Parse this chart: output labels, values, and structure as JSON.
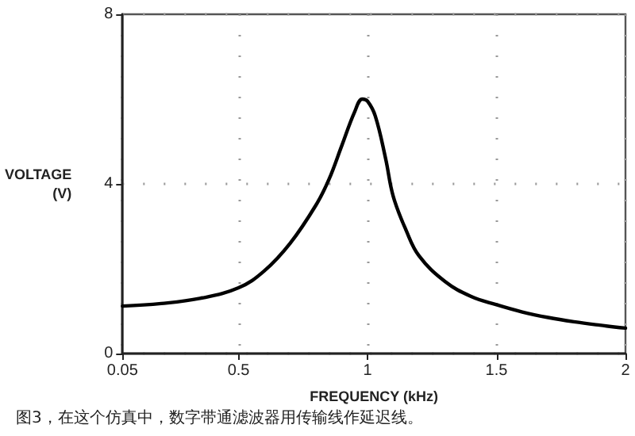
{
  "chart_data": {
    "type": "line",
    "xlabel": "FREQUENCY (kHz)",
    "ylabel": "VOLTAGE (V)",
    "annotations": [
      "图3，在这个仿真中，数字带通滤波器用传输线作延迟线。"
    ],
    "x": [
      0.05,
      0.2,
      0.35,
      0.5,
      0.6,
      0.7,
      0.8,
      0.85,
      0.9,
      0.95,
      0.98,
      1.0,
      1.03,
      1.07,
      1.1,
      1.15,
      1.2,
      1.3,
      1.4,
      1.5,
      1.6,
      1.7,
      1.8,
      1.9,
      2.0
    ],
    "series": [
      {
        "color": "#000000",
        "values": [
          1.12,
          1.18,
          1.3,
          1.55,
          1.95,
          2.6,
          3.5,
          4.1,
          4.9,
          5.7,
          6.0,
          5.95,
          5.6,
          4.6,
          3.7,
          2.9,
          2.3,
          1.7,
          1.35,
          1.15,
          0.98,
          0.85,
          0.75,
          0.67,
          0.6
        ]
      }
    ],
    "xlim": [
      0.05,
      2
    ],
    "xticks": [
      0.05,
      0.5,
      1,
      1.5,
      2
    ],
    "ylim": [
      0,
      8
    ],
    "yticks": [
      0,
      4,
      8
    ],
    "grid": true,
    "marker": "none",
    "line_style": "solid"
  }
}
